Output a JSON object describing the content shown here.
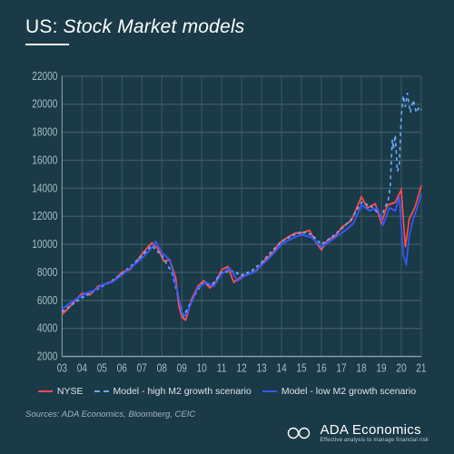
{
  "title": {
    "prefix": "US:",
    "rest": " Stock Market models"
  },
  "sources": "Sources: ADA Economics, Bloomberg, CEIC",
  "brand": {
    "name": "ADA Economics",
    "tagline": "Effective analysis to manage financial risk"
  },
  "chart": {
    "type": "line",
    "background_color": "#1a3a47",
    "grid_color": "#3d5a66",
    "axis_color": "#8aa0a9",
    "label_color": "#a7bcc4",
    "label_fontsize": 10,
    "ylim": [
      2000,
      22000
    ],
    "ytick_step": 2000,
    "xlim": [
      2003,
      2021
    ],
    "xtick_step": 1,
    "xtick_format": "yy",
    "series": [
      {
        "id": "nyse",
        "label": "NYSE",
        "color": "#ff4d4d",
        "style": "solid",
        "width": 1.6,
        "data": [
          [
            2003.0,
            5000
          ],
          [
            2003.3,
            5400
          ],
          [
            2003.6,
            5900
          ],
          [
            2004.0,
            6500
          ],
          [
            2004.4,
            6400
          ],
          [
            2004.8,
            7000
          ],
          [
            2005.2,
            7200
          ],
          [
            2005.6,
            7400
          ],
          [
            2006.0,
            8000
          ],
          [
            2006.4,
            8200
          ],
          [
            2006.7,
            8700
          ],
          [
            2007.0,
            9300
          ],
          [
            2007.3,
            9800
          ],
          [
            2007.5,
            10100
          ],
          [
            2007.8,
            9700
          ],
          [
            2008.1,
            8800
          ],
          [
            2008.4,
            8900
          ],
          [
            2008.7,
            7600
          ],
          [
            2008.85,
            5600
          ],
          [
            2009.0,
            4800
          ],
          [
            2009.2,
            4600
          ],
          [
            2009.5,
            6100
          ],
          [
            2009.8,
            7000
          ],
          [
            2010.1,
            7400
          ],
          [
            2010.4,
            6900
          ],
          [
            2010.7,
            7300
          ],
          [
            2011.0,
            8200
          ],
          [
            2011.3,
            8400
          ],
          [
            2011.6,
            7300
          ],
          [
            2012.0,
            7700
          ],
          [
            2012.4,
            7900
          ],
          [
            2012.8,
            8200
          ],
          [
            2013.1,
            8800
          ],
          [
            2013.5,
            9300
          ],
          [
            2013.9,
            10100
          ],
          [
            2014.3,
            10500
          ],
          [
            2014.7,
            10800
          ],
          [
            2015.0,
            10800
          ],
          [
            2015.4,
            11000
          ],
          [
            2015.7,
            10200
          ],
          [
            2016.0,
            9600
          ],
          [
            2016.3,
            10300
          ],
          [
            2016.7,
            10600
          ],
          [
            2017.0,
            11200
          ],
          [
            2017.5,
            11700
          ],
          [
            2018.0,
            13400
          ],
          [
            2018.3,
            12600
          ],
          [
            2018.7,
            12900
          ],
          [
            2019.0,
            11500
          ],
          [
            2019.3,
            12800
          ],
          [
            2019.7,
            13000
          ],
          [
            2020.0,
            13900
          ],
          [
            2020.2,
            9800
          ],
          [
            2020.4,
            11800
          ],
          [
            2020.7,
            12700
          ],
          [
            2021.0,
            14200
          ]
        ]
      },
      {
        "id": "model_high",
        "label": "Model - high M2 growth scenario",
        "color": "#6aa8ff",
        "style": "dashed",
        "dash": "3 3",
        "width": 1.5,
        "data": [
          [
            2003.0,
            5200
          ],
          [
            2003.5,
            5700
          ],
          [
            2004.0,
            6200
          ],
          [
            2004.5,
            6600
          ],
          [
            2005.0,
            7000
          ],
          [
            2005.5,
            7400
          ],
          [
            2006.0,
            7900
          ],
          [
            2006.5,
            8500
          ],
          [
            2007.0,
            9200
          ],
          [
            2007.5,
            9900
          ],
          [
            2008.0,
            9200
          ],
          [
            2008.5,
            8000
          ],
          [
            2008.9,
            5800
          ],
          [
            2009.1,
            4900
          ],
          [
            2009.5,
            6000
          ],
          [
            2010.0,
            7200
          ],
          [
            2010.5,
            7100
          ],
          [
            2011.0,
            8000
          ],
          [
            2011.5,
            8100
          ],
          [
            2012.0,
            7800
          ],
          [
            2012.5,
            8100
          ],
          [
            2013.0,
            8700
          ],
          [
            2013.5,
            9500
          ],
          [
            2014.0,
            10200
          ],
          [
            2014.5,
            10600
          ],
          [
            2015.0,
            10900
          ],
          [
            2015.5,
            10700
          ],
          [
            2016.0,
            10000
          ],
          [
            2016.5,
            10500
          ],
          [
            2017.0,
            11100
          ],
          [
            2017.5,
            11800
          ],
          [
            2018.0,
            13000
          ],
          [
            2018.5,
            12700
          ],
          [
            2019.0,
            12000
          ],
          [
            2019.35,
            13200
          ],
          [
            2019.45,
            14200
          ],
          [
            2019.55,
            17500
          ],
          [
            2019.6,
            16800
          ],
          [
            2019.7,
            17800
          ],
          [
            2019.8,
            15200
          ],
          [
            2019.9,
            15600
          ],
          [
            2020.0,
            19200
          ],
          [
            2020.1,
            20600
          ],
          [
            2020.2,
            19800
          ],
          [
            2020.3,
            20800
          ],
          [
            2020.45,
            19400
          ],
          [
            2020.6,
            20300
          ],
          [
            2020.75,
            19400
          ],
          [
            2020.9,
            19800
          ],
          [
            2021.0,
            19600
          ]
        ]
      },
      {
        "id": "model_low",
        "label": "Model - low M2 growth scenario",
        "color": "#3a57ff",
        "style": "solid",
        "width": 1.7,
        "data": [
          [
            2003.0,
            5400
          ],
          [
            2003.4,
            5800
          ],
          [
            2003.8,
            6200
          ],
          [
            2004.2,
            6500
          ],
          [
            2004.6,
            6700
          ],
          [
            2005.0,
            7100
          ],
          [
            2005.5,
            7300
          ],
          [
            2006.0,
            7800
          ],
          [
            2006.5,
            8400
          ],
          [
            2007.0,
            9000
          ],
          [
            2007.4,
            9600
          ],
          [
            2007.7,
            10200
          ],
          [
            2008.0,
            9400
          ],
          [
            2008.4,
            8900
          ],
          [
            2008.8,
            6500
          ],
          [
            2009.0,
            5100
          ],
          [
            2009.2,
            4900
          ],
          [
            2009.5,
            5900
          ],
          [
            2009.8,
            6900
          ],
          [
            2010.2,
            7300
          ],
          [
            2010.6,
            7000
          ],
          [
            2011.0,
            7900
          ],
          [
            2011.4,
            8300
          ],
          [
            2011.8,
            7400
          ],
          [
            2012.2,
            7800
          ],
          [
            2012.6,
            8000
          ],
          [
            2013.0,
            8500
          ],
          [
            2013.5,
            9200
          ],
          [
            2014.0,
            10000
          ],
          [
            2014.5,
            10400
          ],
          [
            2015.0,
            10700
          ],
          [
            2015.5,
            10500
          ],
          [
            2016.0,
            9800
          ],
          [
            2016.4,
            10200
          ],
          [
            2016.8,
            10600
          ],
          [
            2017.2,
            11000
          ],
          [
            2017.6,
            11500
          ],
          [
            2018.0,
            12800
          ],
          [
            2018.4,
            12400
          ],
          [
            2018.8,
            12600
          ],
          [
            2019.1,
            11400
          ],
          [
            2019.4,
            12600
          ],
          [
            2019.7,
            12400
          ],
          [
            2019.9,
            13400
          ],
          [
            2020.1,
            9200
          ],
          [
            2020.25,
            8600
          ],
          [
            2020.4,
            10600
          ],
          [
            2020.6,
            11800
          ],
          [
            2020.8,
            12600
          ],
          [
            2021.0,
            13600
          ]
        ]
      }
    ]
  },
  "legend": [
    {
      "label": "NYSE",
      "color": "#ff4d4d",
      "style": "solid"
    },
    {
      "label": "Model - high M2 growth scenario",
      "color": "#6aa8ff",
      "style": "dashed"
    },
    {
      "label": "Model - low M2 growth scenario",
      "color": "#3a57ff",
      "style": "solid"
    }
  ]
}
